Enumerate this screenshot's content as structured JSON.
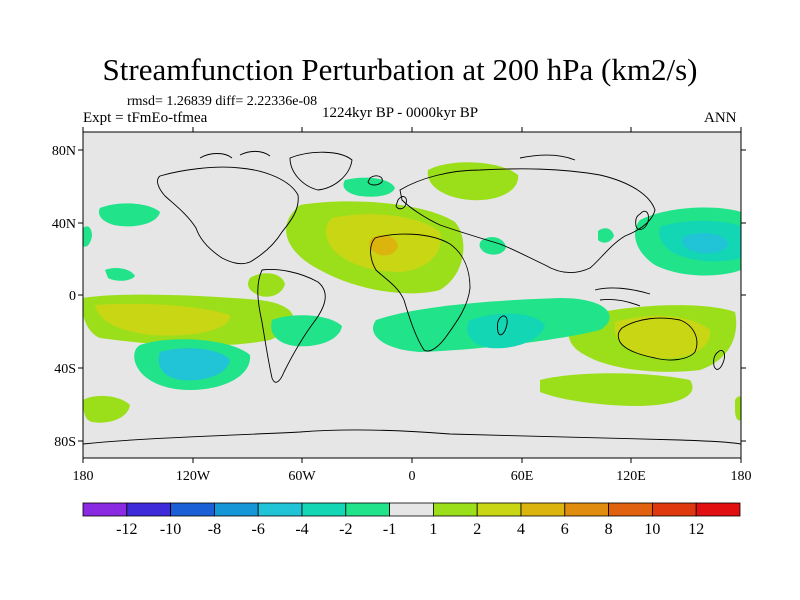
{
  "title": "Streamfunction Perturbation at 200 hPa (km2/s)",
  "stats": "rmsd= 1.26839 diff= 2.22336e-08",
  "experiment": "Expt = tFmEo-tfmea",
  "period": "1224kyr BP - 0000kyr BP",
  "season": "ANN",
  "lat_labels": [
    "80N",
    "40N",
    "0",
    "40S",
    "80S"
  ],
  "lon_labels": [
    "180",
    "120W",
    "60W",
    "0",
    "60E",
    "120E",
    "180"
  ],
  "colorbar": {
    "colors": [
      "#8a2be2",
      "#3d2ad8",
      "#1b5fd6",
      "#1596d6",
      "#21c3d6",
      "#13d6b4",
      "#21e38a",
      "#e6e6e6",
      "#9bdf1b",
      "#c9d614",
      "#dcb40e",
      "#e08c0e",
      "#e0620e",
      "#e0380e",
      "#e10f0f"
    ],
    "labels": [
      "-12",
      "-10",
      "-8",
      "-6",
      "-4",
      "-2",
      "-1",
      "1",
      "2",
      "4",
      "6",
      "8",
      "10",
      "12"
    ]
  },
  "palette": {
    "neutral": "#e6e6e6",
    "neg1": "#21e38a",
    "neg2": "#13d6b4",
    "neg4": "#21c3d6",
    "pos1": "#9bdf1b",
    "pos2": "#c9d614",
    "pos4": "#dcb40e",
    "pos6": "#e08c0e"
  }
}
